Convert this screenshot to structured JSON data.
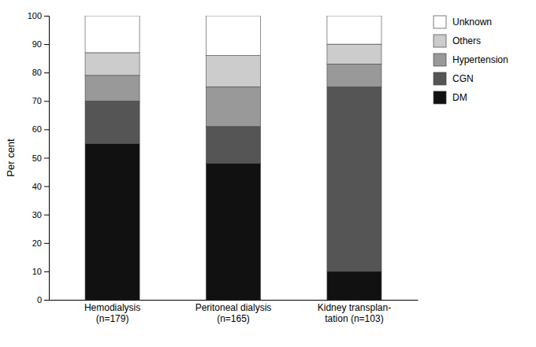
{
  "chart_data": {
    "type": "bar",
    "stacked": true,
    "categories": [
      "Hemodialysis\n(n=179)",
      "Peritoneal dialysis\n(n=165)",
      "Kidney transplan-\ntation (n=103)"
    ],
    "series": [
      {
        "name": "DM",
        "color": "#111111",
        "values": [
          55,
          48,
          10
        ]
      },
      {
        "name": "CGN",
        "color": "#555555",
        "values": [
          15,
          13,
          65
        ]
      },
      {
        "name": "Hypertension",
        "color": "#999999",
        "values": [
          9,
          14,
          8
        ]
      },
      {
        "name": "Others",
        "color": "#cccccc",
        "values": [
          8,
          11,
          7
        ]
      },
      {
        "name": "Unknown",
        "color": "#ffffff",
        "values": [
          13,
          14,
          10
        ]
      }
    ],
    "ylabel": "Per cent",
    "ylim": [
      0,
      100
    ],
    "yticks": [
      0,
      10,
      20,
      30,
      40,
      50,
      60,
      70,
      80,
      90,
      100
    ],
    "grid": false,
    "legend": "right"
  }
}
